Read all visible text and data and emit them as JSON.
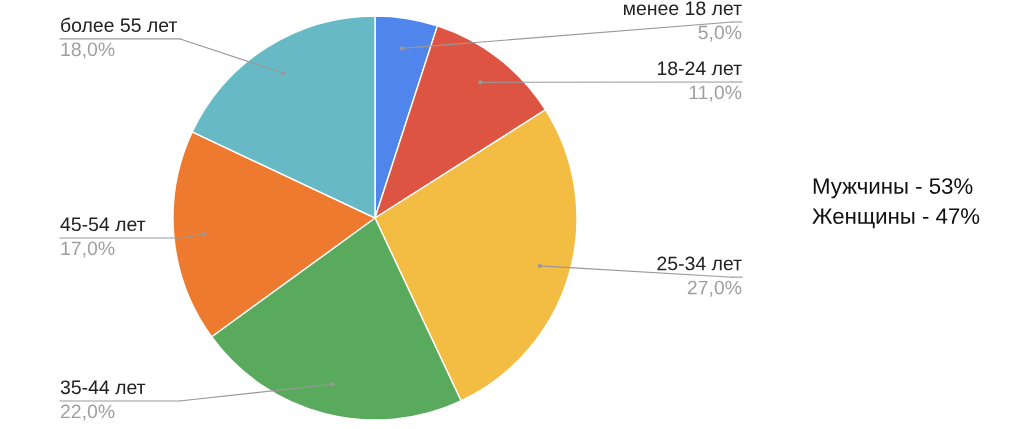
{
  "chart_data": {
    "type": "pie",
    "categories": [
      "менее 18 лет",
      "18-24 лет",
      "25-34 лет",
      "35-44 лет",
      "45-54 лет",
      "более 55 лет"
    ],
    "values": [
      5,
      11,
      27,
      22,
      17,
      18
    ],
    "value_labels": [
      "5,0%",
      "11,0%",
      "27,0%",
      "22,0%",
      "17,0%",
      "18,0%"
    ],
    "colors": [
      "#5086ec",
      "#dd5542",
      "#f3bd43",
      "#5aaa5e",
      "#ee7a2f",
      "#67bac5"
    ],
    "annotations": [
      "Мужчины - 53%",
      "Женщины - 47%"
    ]
  }
}
